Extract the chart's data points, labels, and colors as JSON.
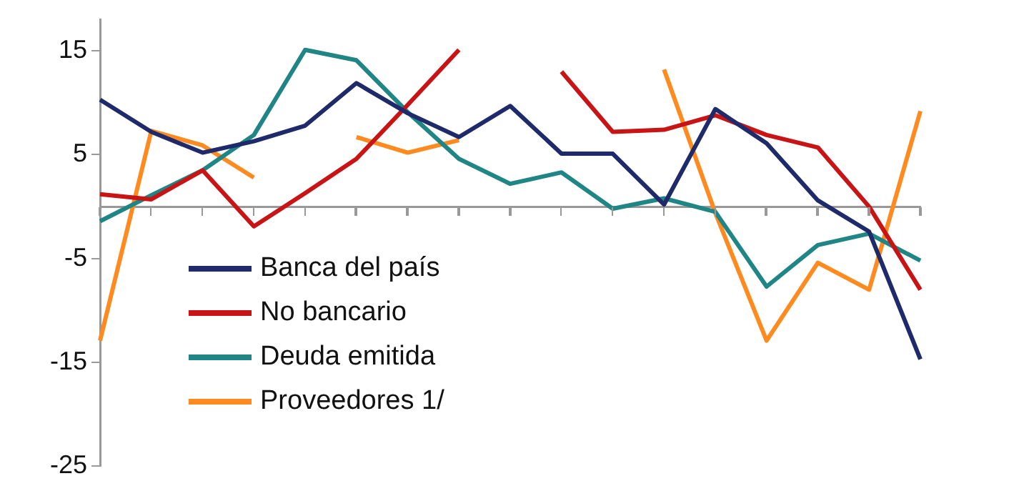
{
  "chart_data": {
    "type": "line",
    "categories": [
      null,
      null,
      null,
      null,
      null,
      null,
      null,
      null,
      null,
      null,
      null,
      null,
      null,
      null,
      null,
      null,
      null
    ],
    "series": [
      {
        "name": "Banca del país",
        "color": "#1f2a6b",
        "values": [
          10.3,
          7.2,
          5.2,
          6.3,
          7.8,
          11.9,
          9.0,
          6.7,
          9.7,
          5.1,
          5.1,
          0.2,
          9.4,
          6.1,
          0.6,
          -2.4,
          -14.7
        ]
      },
      {
        "name": "No bancario",
        "color": "#c81414",
        "values": [
          1.2,
          0.7,
          3.5,
          -1.9,
          1.3,
          4.6,
          9.8,
          15.1,
          null,
          13.0,
          7.2,
          7.4,
          8.8,
          6.9,
          5.7,
          0.0,
          -8.0
        ]
      },
      {
        "name": "Deuda emitida",
        "color": "#1f8585",
        "values": [
          -1.4,
          1.1,
          3.5,
          6.9,
          15.1,
          14.1,
          9.1,
          4.6,
          2.2,
          3.3,
          -0.2,
          0.8,
          -0.5,
          -7.7,
          -3.7,
          -2.6,
          -5.2
        ]
      },
      {
        "name": "Proveedores 1/",
        "color": "#ff8a1f",
        "values": [
          -12.9,
          7.3,
          5.9,
          2.8,
          null,
          6.7,
          5.2,
          6.4,
          null,
          null,
          null,
          13.2,
          -0.6,
          -12.9,
          -5.4,
          -8.0,
          9.2
        ]
      }
    ],
    "ylim": [
      -25,
      18
    ],
    "yticks": [
      -25,
      -15,
      -5,
      5,
      15
    ],
    "grid": false,
    "legend": "bottom left",
    "tick_labels": "y",
    "marker": "none",
    "line_style": "solid"
  }
}
